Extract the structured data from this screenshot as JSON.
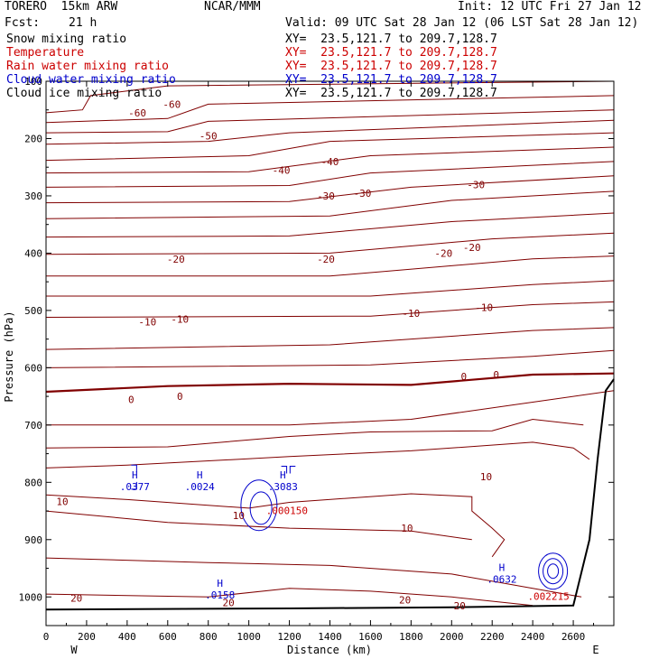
{
  "header": {
    "model": "TORERO  15km ARW",
    "org": "NCAR/MMM",
    "init": "Init: 12 UTC Fri 27 Jan 12",
    "fcst_label": "Fcst:",
    "fcst_value": "21 h",
    "valid": "Valid: 09 UTC Sat 28 Jan 12 (06 LST Sat 28 Jan 12)"
  },
  "fields": [
    {
      "name": "Snow mixing ratio",
      "xy": "XY=  23.5,121.7 to 209.7,128.7",
      "color": "#000000",
      "xy_color": "#000000"
    },
    {
      "name": "Temperature",
      "xy": "XY=  23.5,121.7 to 209.7,128.7",
      "color": "#cc0000",
      "xy_color": "#cc0000"
    },
    {
      "name": "Rain water mixing ratio",
      "xy": "XY=  23.5,121.7 to 209.7,128.7",
      "color": "#cc0000",
      "xy_color": "#cc0000"
    },
    {
      "name": "Cloud water mixing ratio",
      "xy": "XY=  23.5,121.7 to 209.7,128.7",
      "color": "#0000cc",
      "xy_color": "#0000cc"
    },
    {
      "name": "Cloud ice mixing ratio",
      "xy": "XY=  23.5,121.7 to 209.7,128.7",
      "color": "#000000",
      "xy_color": "#000000"
    }
  ],
  "chart_data": {
    "type": "contour-cross-section",
    "xlabel": "Distance (km)",
    "ylabel": "Pressure (hPa)",
    "xlim": [
      0,
      2800
    ],
    "ylim": [
      1050,
      100
    ],
    "x_ticks": [
      "0",
      "200",
      "400",
      "600",
      "800",
      "1000",
      "1200",
      "1400",
      "1600",
      "1800",
      "2000",
      "2200",
      "2400",
      "2600"
    ],
    "x_tick_values": [
      0,
      200,
      400,
      600,
      800,
      1000,
      1200,
      1400,
      1600,
      1800,
      2000,
      2200,
      2400,
      2600
    ],
    "y_ticks": [
      "100",
      "200",
      "300",
      "400",
      "500",
      "600",
      "700",
      "800",
      "900",
      "1000"
    ],
    "y_tick_values": [
      100,
      200,
      300,
      400,
      500,
      600,
      700,
      800,
      900,
      1000
    ],
    "west_label": "W",
    "east_label": "E",
    "temperature_contours": [
      {
        "label": "-60",
        "x": 450,
        "p": 155
      },
      {
        "label": "-60",
        "x": 620,
        "p": 140
      },
      {
        "label": "-50",
        "x": 800,
        "p": 195
      },
      {
        "label": "-40",
        "x": 1160,
        "p": 255
      },
      {
        "label": "-40",
        "x": 1400,
        "p": 240
      },
      {
        "label": "-30",
        "x": 1380,
        "p": 300
      },
      {
        "label": "-30",
        "x": 1560,
        "p": 295
      },
      {
        "label": "-30",
        "x": 2120,
        "p": 280
      },
      {
        "label": "-20",
        "x": 640,
        "p": 410
      },
      {
        "label": "-20",
        "x": 1380,
        "p": 410
      },
      {
        "label": "-20",
        "x": 1960,
        "p": 400
      },
      {
        "label": "-20",
        "x": 2100,
        "p": 390
      },
      {
        "label": "-10",
        "x": 500,
        "p": 520
      },
      {
        "label": "-10",
        "x": 660,
        "p": 515
      },
      {
        "label": "-10",
        "x": 1800,
        "p": 505
      },
      {
        "label": "-10",
        "x": 2160,
        "p": 495
      },
      {
        "label": "0",
        "x": 420,
        "p": 655
      },
      {
        "label": "0",
        "x": 660,
        "p": 650
      },
      {
        "label": "0",
        "x": 2060,
        "p": 615
      },
      {
        "label": "0",
        "x": 2220,
        "p": 612
      },
      {
        "label": "10",
        "x": 80,
        "p": 833
      },
      {
        "label": "10",
        "x": 950,
        "p": 858
      },
      {
        "label": "10",
        "x": 1780,
        "p": 880
      },
      {
        "label": "10",
        "x": 2170,
        "p": 790
      },
      {
        "label": "20",
        "x": 150,
        "p": 1002
      },
      {
        "label": "20",
        "x": 900,
        "p": 1010
      },
      {
        "label": "20",
        "x": 1770,
        "p": 1005
      },
      {
        "label": "20",
        "x": 2040,
        "p": 1015
      }
    ],
    "maxima": [
      {
        "label": "H",
        "value": ".0377",
        "x": 420,
        "p": 793,
        "field": "cloud_water"
      },
      {
        "label": "H",
        "value": ".0024",
        "x": 740,
        "p": 793,
        "field": "cloud_water"
      },
      {
        "label": "H",
        "value": ".3083",
        "x": 1150,
        "p": 793,
        "field": "cloud_water"
      },
      {
        "label": "H",
        "value": ".0632",
        "x": 2230,
        "p": 955,
        "field": "cloud_water"
      },
      {
        "label": "H",
        "value": ".0158",
        "x": 840,
        "p": 982,
        "field": "cloud_water"
      },
      {
        "label": "",
        "value": ".000150",
        "x": 1170,
        "p": 835,
        "field": "rain_water"
      },
      {
        "label": "",
        "value": ".002215",
        "x": 2460,
        "p": 985,
        "field": "rain_water"
      }
    ]
  }
}
